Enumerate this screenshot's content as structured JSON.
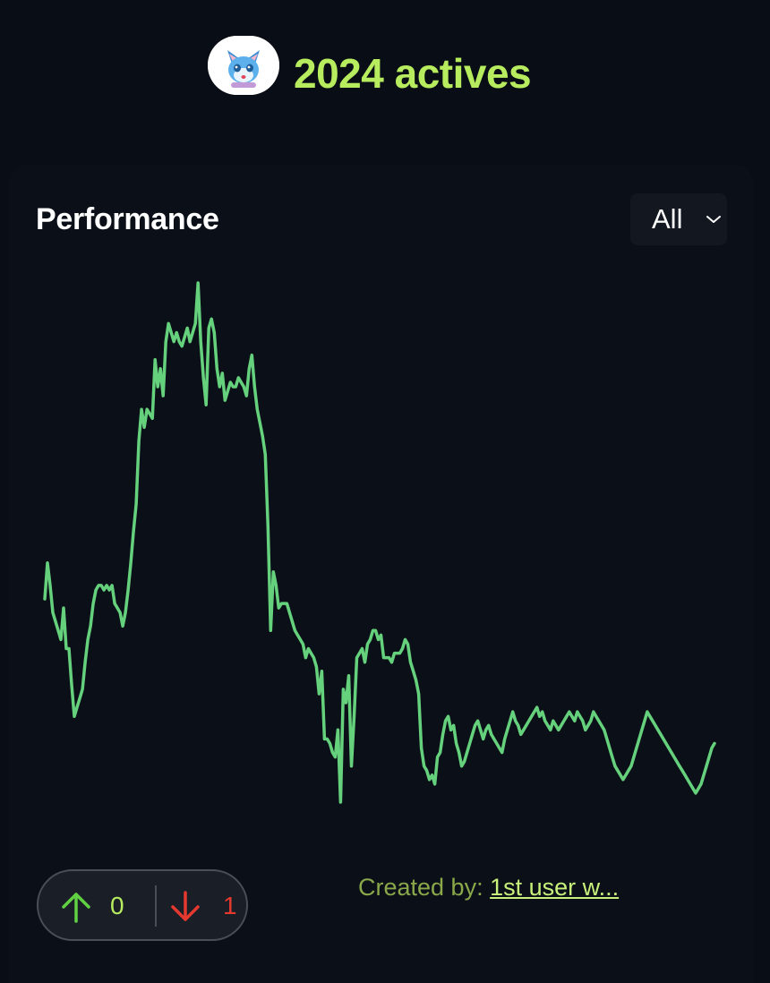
{
  "header": {
    "title": "2024 actives",
    "avatar_icon": "cat-mascot-avatar"
  },
  "card": {
    "title": "Performance",
    "range_select": {
      "value": "All"
    }
  },
  "colors": {
    "accent": "#b7ec5f",
    "line": "#66d17d",
    "down": "#e5382e",
    "background": "#090d15"
  },
  "chart_data": {
    "type": "line",
    "title": "",
    "xlabel": "",
    "ylabel": "",
    "grid": false,
    "legend": "none",
    "x": [
      0,
      1,
      2,
      3,
      4,
      5,
      6,
      7,
      8,
      9,
      10,
      11,
      12,
      13,
      14,
      15,
      16,
      17,
      18,
      19,
      20,
      21,
      22,
      23,
      24,
      25,
      26,
      27,
      28,
      29,
      30,
      31,
      32,
      33,
      34,
      35,
      36,
      37,
      38,
      39,
      40,
      41,
      42,
      43,
      44,
      45,
      46,
      47,
      48,
      49,
      50,
      51,
      52,
      53,
      54,
      55,
      56,
      57,
      58,
      59,
      60,
      61,
      62,
      63,
      64,
      65,
      66,
      67,
      68,
      69,
      70,
      71,
      72,
      73,
      74,
      75,
      76,
      77,
      78,
      79,
      80,
      81,
      82,
      83,
      84,
      85,
      86,
      87,
      88,
      89,
      90,
      91,
      92,
      93,
      94,
      95,
      96,
      97,
      98,
      99,
      100,
      101,
      102,
      103,
      104,
      105,
      106,
      107,
      108,
      109,
      110,
      111,
      112,
      113,
      114,
      115,
      116,
      117,
      118,
      119,
      120,
      121,
      122,
      123,
      124,
      125,
      126,
      127,
      128,
      129,
      130,
      131,
      132,
      133,
      134,
      135,
      136,
      137,
      138,
      139,
      140,
      141,
      142,
      143,
      144,
      145,
      146,
      147,
      148,
      149,
      150,
      151,
      152,
      153,
      154,
      155,
      156,
      157,
      158,
      159,
      160,
      161,
      162,
      163,
      164,
      165,
      166,
      167,
      168,
      169,
      170,
      171,
      172,
      173,
      174,
      175,
      176,
      177,
      178,
      179,
      180,
      181,
      182,
      183,
      184,
      185,
      186,
      187,
      188,
      189,
      190,
      191,
      192,
      193,
      194,
      195,
      196,
      197,
      198,
      199,
      200,
      201,
      202,
      203,
      204,
      205,
      206,
      207,
      208,
      209,
      210,
      211,
      212,
      213,
      214,
      215,
      216,
      217,
      218,
      219,
      220,
      221,
      222,
      223,
      224,
      225,
      226,
      227,
      228,
      229,
      230,
      231,
      232,
      233,
      234,
      235,
      236,
      237,
      238,
      239,
      240,
      241,
      242,
      243,
      244,
      245,
      246,
      247,
      248,
      249
    ],
    "values": [
      47,
      55,
      50,
      44,
      42,
      40,
      38,
      45,
      36,
      36,
      28,
      21,
      23,
      25,
      27,
      33,
      38,
      41,
      46,
      49,
      50,
      50,
      49,
      50,
      49,
      50,
      46,
      45,
      44,
      41,
      44,
      49,
      55,
      62,
      68,
      82,
      89,
      85,
      89,
      88,
      87,
      100,
      94,
      98,
      92,
      104,
      108,
      106,
      104,
      106,
      104,
      103,
      105,
      107,
      104,
      106,
      108,
      117,
      104,
      96,
      90,
      107,
      109,
      106,
      98,
      94,
      97,
      91,
      93,
      95,
      94,
      94,
      96,
      95,
      94,
      92,
      98,
      101,
      94,
      89,
      86,
      83,
      79,
      63,
      40,
      53,
      50,
      45,
      46,
      46,
      46,
      44,
      42,
      40,
      39,
      38,
      37,
      34,
      36,
      35,
      34,
      32,
      26,
      31,
      16,
      16,
      15,
      13,
      12,
      18,
      2,
      27,
      24,
      30,
      10,
      21,
      34,
      35,
      36,
      33,
      37,
      38,
      40,
      40,
      38,
      39,
      34,
      34,
      34,
      33,
      35,
      35,
      35,
      36,
      38,
      37,
      33,
      31,
      29,
      26,
      14,
      10,
      9,
      7,
      8,
      6,
      12,
      13,
      17,
      20,
      21,
      18,
      19,
      15,
      13,
      10,
      11,
      13,
      15,
      17,
      19,
      20,
      18,
      16,
      18,
      19,
      17,
      16,
      15,
      14,
      13,
      16,
      18,
      20,
      22,
      20,
      19,
      17,
      18,
      19,
      20,
      21,
      22,
      23,
      21,
      22,
      20,
      19,
      18,
      20,
      19,
      18,
      19,
      20,
      21,
      22,
      21,
      20,
      22,
      21,
      20,
      18,
      19,
      20,
      22,
      21,
      20,
      19,
      18,
      16,
      14,
      12,
      10,
      9,
      8,
      7,
      8,
      9,
      10,
      12,
      14,
      16,
      18,
      20,
      22,
      21,
      20,
      19,
      18,
      17,
      16,
      15,
      14,
      13,
      12,
      11,
      10,
      9,
      8,
      7,
      6,
      5,
      4,
      5,
      6,
      8,
      10,
      12,
      14,
      15
    ]
  },
  "votes": {
    "up_icon": "arrow-up-icon",
    "down_icon": "arrow-down-icon",
    "up_count": "0",
    "down_count": "1"
  },
  "creator": {
    "label": "Created by: ",
    "link_text": "1st user w..."
  }
}
